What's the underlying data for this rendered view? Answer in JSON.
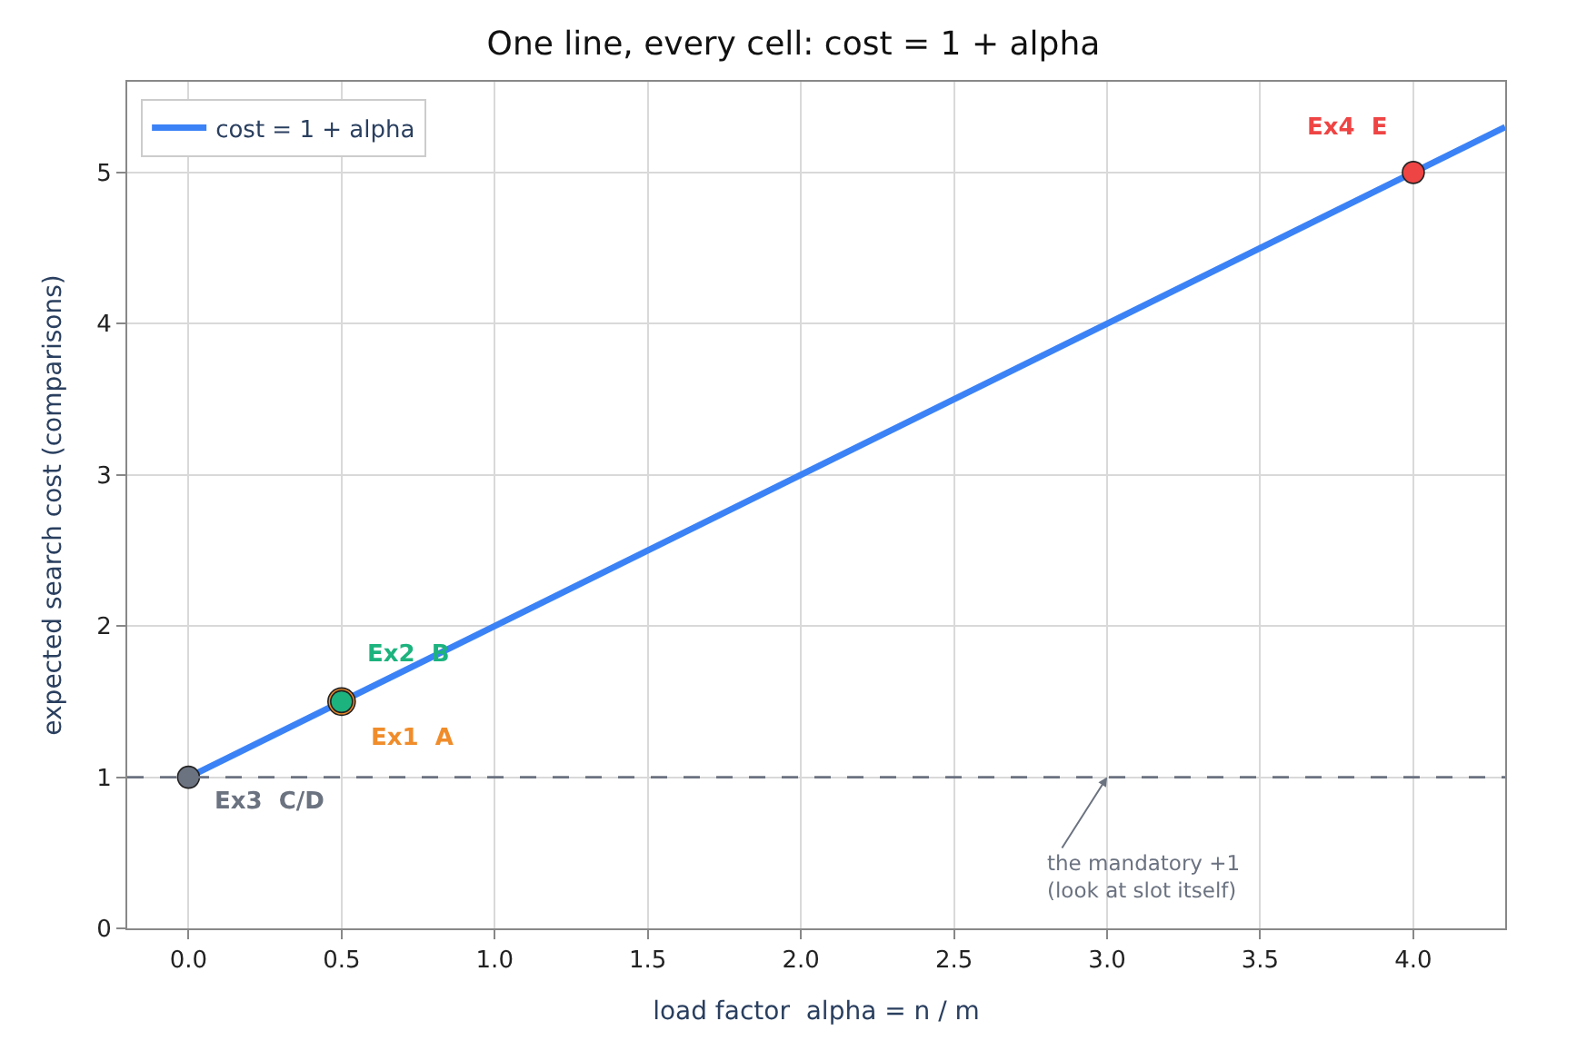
{
  "chart_data": {
    "type": "line",
    "title": "One line, every cell: cost = 1 + alpha",
    "xlabel": "load factor  alpha = n / m",
    "ylabel": "expected search cost (comparisons)",
    "series": [
      {
        "name": "cost = 1 + alpha",
        "color": "#3b82f6",
        "x": [
          0,
          4.3
        ],
        "values": [
          1,
          5.3
        ],
        "marker": "none"
      },
      {
        "name": "Ex1  A",
        "type": "scatter",
        "color": "#f08c2a",
        "x": [
          0.5
        ],
        "values": [
          1.5
        ],
        "marker": "circle"
      },
      {
        "name": "Ex2  B",
        "type": "scatter",
        "color": "#1db37e",
        "x": [
          0.5
        ],
        "values": [
          1.5
        ],
        "marker": "circle"
      },
      {
        "name": "Ex3  C/D",
        "type": "scatter",
        "color": "#6b7280",
        "x": [
          0
        ],
        "values": [
          1
        ],
        "marker": "circle"
      },
      {
        "name": "Ex4  E",
        "type": "scatter",
        "color": "#ef4444",
        "x": [
          4
        ],
        "values": [
          5
        ],
        "marker": "circle"
      }
    ],
    "xlim": [
      -0.2,
      4.3
    ],
    "xticks": [
      {
        "value": 0,
        "label": "0.0"
      },
      {
        "value": 0.5,
        "label": "0.5"
      },
      {
        "value": 1,
        "label": "1.0"
      },
      {
        "value": 1.5,
        "label": "1.5"
      },
      {
        "value": 2,
        "label": "2.0"
      },
      {
        "value": 2.5,
        "label": "2.5"
      },
      {
        "value": 3,
        "label": "3.0"
      },
      {
        "value": 3.5,
        "label": "3.5"
      },
      {
        "value": 4,
        "label": "4.0"
      }
    ],
    "ylim": [
      0,
      5.6
    ],
    "yticks": [
      0,
      1,
      2,
      3,
      4,
      5
    ],
    "ref_lines": [
      {
        "axis": "y",
        "value": 1,
        "color": "#6b7280",
        "line_style": "dashed"
      }
    ],
    "annotations": [
      {
        "text": "the mandatory +1\n(look at slot itself)",
        "x": 3.0,
        "y": 1.0
      }
    ],
    "grid": true,
    "legend": "top left",
    "line_style": "solid"
  }
}
